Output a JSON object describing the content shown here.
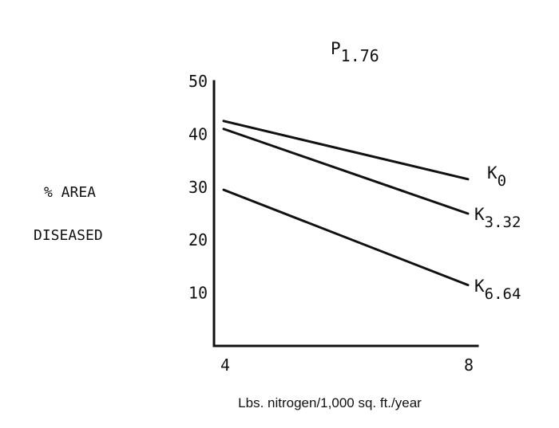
{
  "chart_data": {
    "type": "line",
    "title": {
      "main": "P",
      "sub": "1.76"
    },
    "ylabel": [
      "% AREA",
      "DISEASED"
    ],
    "xlabel": "Lbs. nitrogen/1,000 sq. ft./year",
    "x": [
      4,
      8
    ],
    "xticks": [
      "4",
      "8"
    ],
    "yticks": [
      "10",
      "20",
      "30",
      "40",
      "50"
    ],
    "xlim": [
      4,
      8
    ],
    "ylim": [
      0,
      50
    ],
    "grid": false,
    "legend": "none",
    "series": [
      {
        "name": "K",
        "sub": "0",
        "values": [
          42.5,
          31.5
        ]
      },
      {
        "name": "K",
        "sub": "3.32",
        "values": [
          41,
          25
        ]
      },
      {
        "name": "K",
        "sub": "6.64",
        "values": [
          29.5,
          11.5
        ]
      }
    ]
  }
}
